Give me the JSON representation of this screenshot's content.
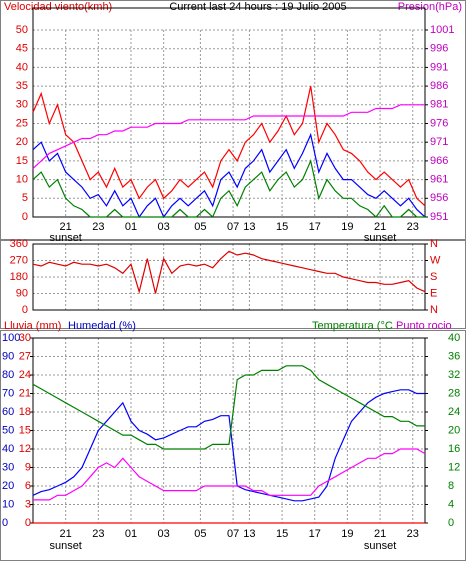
{
  "chart_data": [
    {
      "type": "line",
      "title": "Current last 24 hours : 19 Julio 2005",
      "ylabel": "Velocidad viento(kmh)",
      "y2label": "Presion(hPa)",
      "xlim": [
        0,
        48
      ],
      "xticks": [
        {
          "value": 4,
          "label": "21"
        },
        {
          "value": 8,
          "label": "23"
        },
        {
          "value": 12,
          "label": "01"
        },
        {
          "value": 16,
          "label": "03"
        },
        {
          "value": 20.5,
          "label": "05"
        },
        {
          "value": 24.5,
          "label": "07"
        },
        {
          "value": 26.5,
          "label": "13"
        },
        {
          "value": 30.5,
          "label": "15"
        },
        {
          "value": 34.5,
          "label": "17"
        },
        {
          "value": 38.5,
          "label": "19"
        },
        {
          "value": 42.5,
          "label": "21"
        },
        {
          "value": 46.5,
          "label": "23"
        }
      ],
      "annotations": [
        {
          "text": "sunset",
          "x": 4
        },
        {
          "text": "sunset",
          "x": 42.5
        }
      ],
      "ylim": [
        0,
        50
      ],
      "yticks": [
        0,
        5,
        10,
        15,
        20,
        25,
        30,
        35,
        40,
        45,
        50
      ],
      "y2lim": [
        951,
        1001
      ],
      "y2ticks": [
        951,
        956,
        961,
        966,
        971,
        976,
        981,
        986,
        991,
        996,
        1001
      ],
      "grid": true,
      "series": [
        {
          "color": "#ff0000",
          "values": [
            28,
            33,
            25,
            30,
            22,
            20,
            15,
            10,
            12,
            8,
            13,
            8,
            10,
            5,
            8,
            10,
            5,
            7,
            10,
            8,
            10,
            12,
            8,
            15,
            18,
            15,
            20,
            22,
            25,
            20,
            23,
            27,
            22,
            25,
            35,
            20,
            25,
            22,
            18,
            17,
            15,
            12,
            10,
            12,
            10,
            8,
            10,
            5,
            3
          ]
        },
        {
          "color": "#0000ff",
          "values": [
            18,
            20,
            15,
            17,
            12,
            10,
            8,
            5,
            6,
            3,
            7,
            3,
            5,
            0,
            3,
            5,
            0,
            3,
            5,
            3,
            5,
            7,
            3,
            10,
            12,
            8,
            13,
            15,
            18,
            12,
            15,
            18,
            13,
            17,
            22,
            12,
            17,
            13,
            10,
            10,
            8,
            6,
            5,
            7,
            5,
            3,
            5,
            2,
            0
          ]
        },
        {
          "color": "#008000",
          "values": [
            10,
            12,
            8,
            10,
            5,
            3,
            2,
            0,
            0,
            0,
            2,
            0,
            0,
            0,
            0,
            0,
            0,
            0,
            2,
            0,
            0,
            2,
            0,
            5,
            7,
            3,
            8,
            10,
            12,
            7,
            10,
            12,
            8,
            10,
            15,
            5,
            10,
            7,
            5,
            5,
            3,
            2,
            0,
            3,
            0,
            0,
            2,
            0,
            0
          ]
        },
        {
          "color": "#ff00ff",
          "axis": "y2",
          "values": [
            964,
            966,
            968,
            969,
            970,
            971,
            972,
            972,
            973,
            973,
            974,
            974,
            975,
            975,
            975,
            976,
            976,
            976,
            976,
            977,
            977,
            977,
            977,
            977,
            977,
            977,
            977,
            978,
            978,
            978,
            978,
            978,
            978,
            978,
            978,
            978,
            978,
            978,
            978,
            979,
            979,
            979,
            980,
            980,
            980,
            981,
            981,
            981,
            981
          ]
        }
      ]
    },
    {
      "type": "line",
      "xlim": [
        0,
        48
      ],
      "xticks": [
        4,
        8,
        12,
        16,
        20.5,
        24.5,
        26.5,
        30.5,
        34.5,
        38.5,
        42.5,
        46.5
      ],
      "ylim": [
        0,
        360
      ],
      "yticks": [
        0,
        90,
        180,
        270,
        360
      ],
      "y2lim": [
        0,
        360
      ],
      "y2ticks": [
        {
          "value": 360,
          "label": "N"
        },
        {
          "value": 270,
          "label": "W"
        },
        {
          "value": 180,
          "label": "S"
        },
        {
          "value": 90,
          "label": "E"
        },
        {
          "value": 0,
          "label": "N"
        }
      ],
      "grid": true,
      "series": [
        {
          "color": "#e00000",
          "values": [
            250,
            240,
            260,
            250,
            240,
            260,
            250,
            250,
            240,
            250,
            230,
            200,
            250,
            100,
            280,
            90,
            280,
            200,
            240,
            250,
            240,
            250,
            230,
            280,
            320,
            300,
            310,
            300,
            280,
            270,
            260,
            250,
            240,
            230,
            220,
            210,
            200,
            200,
            180,
            170,
            160,
            150,
            150,
            140,
            140,
            150,
            160,
            120,
            100
          ]
        }
      ]
    },
    {
      "type": "line",
      "rain_label": "Lluvia (mm)",
      "ylabel": "Humedad (%)",
      "y2label": "Temperatura (°C",
      "y2label2": "Punto rocio",
      "xlim": [
        0,
        48
      ],
      "xticks": [
        {
          "value": 4,
          "label": "21"
        },
        {
          "value": 8,
          "label": "23"
        },
        {
          "value": 12,
          "label": "01"
        },
        {
          "value": 16,
          "label": "03"
        },
        {
          "value": 20.5,
          "label": "05"
        },
        {
          "value": 24.5,
          "label": "07"
        },
        {
          "value": 26.5,
          "label": "13"
        },
        {
          "value": 30.5,
          "label": "15"
        },
        {
          "value": 34.5,
          "label": "17"
        },
        {
          "value": 38.5,
          "label": "19"
        },
        {
          "value": 42.5,
          "label": "21"
        },
        {
          "value": 46.5,
          "label": "23"
        }
      ],
      "annotations": [
        {
          "text": "sunset",
          "x": 4
        },
        {
          "text": "sunset",
          "x": 42.5
        }
      ],
      "ylim": [
        0,
        100
      ],
      "yticks": [
        0,
        10,
        20,
        30,
        40,
        50,
        60,
        70,
        80,
        90,
        100
      ],
      "rain_lim": [
        0,
        30
      ],
      "rain_ticks": [
        0,
        3,
        6,
        9,
        12,
        15,
        18,
        21,
        24,
        27,
        30
      ],
      "y2lim": [
        0,
        40
      ],
      "y2ticks": [
        0,
        4,
        8,
        12,
        16,
        20,
        24,
        28,
        32,
        36,
        40
      ],
      "grid": true,
      "series": [
        {
          "color": "#ff0000",
          "axis": "rain",
          "values": [
            0,
            0,
            0,
            0,
            0,
            0,
            0,
            0,
            0,
            0,
            0,
            0,
            0,
            0,
            0,
            0,
            0,
            0,
            0,
            0,
            0,
            0,
            0,
            0,
            0,
            0,
            0,
            0,
            0,
            0,
            0,
            0,
            0,
            0,
            0,
            0,
            0,
            0,
            0,
            0,
            0,
            0,
            0,
            0,
            0,
            0,
            0,
            0,
            0
          ]
        },
        {
          "color": "#0000ff",
          "values": [
            15,
            17,
            18,
            20,
            22,
            25,
            30,
            40,
            50,
            55,
            60,
            65,
            55,
            50,
            48,
            45,
            46,
            48,
            50,
            52,
            52,
            55,
            56,
            58,
            58,
            20,
            18,
            17,
            16,
            15,
            14,
            13,
            12,
            12,
            13,
            14,
            20,
            35,
            45,
            55,
            60,
            65,
            68,
            70,
            71,
            72,
            72,
            70,
            70
          ]
        },
        {
          "color": "#008000",
          "axis": "y2",
          "values": [
            30,
            29,
            28,
            27,
            26,
            25,
            24,
            23,
            22,
            21,
            20,
            19,
            19,
            18,
            17,
            17,
            16,
            16,
            16,
            16,
            16,
            16,
            17,
            17,
            17,
            31,
            32,
            32,
            33,
            33,
            33,
            34,
            34,
            34,
            33,
            31,
            30,
            29,
            28,
            27,
            26,
            25,
            24,
            23,
            23,
            22,
            22,
            21,
            21
          ]
        },
        {
          "color": "#ff00ff",
          "axis": "y2",
          "values": [
            5,
            5,
            5,
            6,
            6,
            7,
            8,
            10,
            12,
            13,
            12,
            14,
            12,
            10,
            9,
            8,
            7,
            7,
            7,
            7,
            7,
            8,
            8,
            8,
            8,
            8,
            8,
            7,
            7,
            6,
            6,
            6,
            6,
            6,
            6,
            8,
            9,
            10,
            11,
            12,
            13,
            14,
            14,
            15,
            15,
            16,
            16,
            16,
            15
          ]
        }
      ]
    }
  ]
}
